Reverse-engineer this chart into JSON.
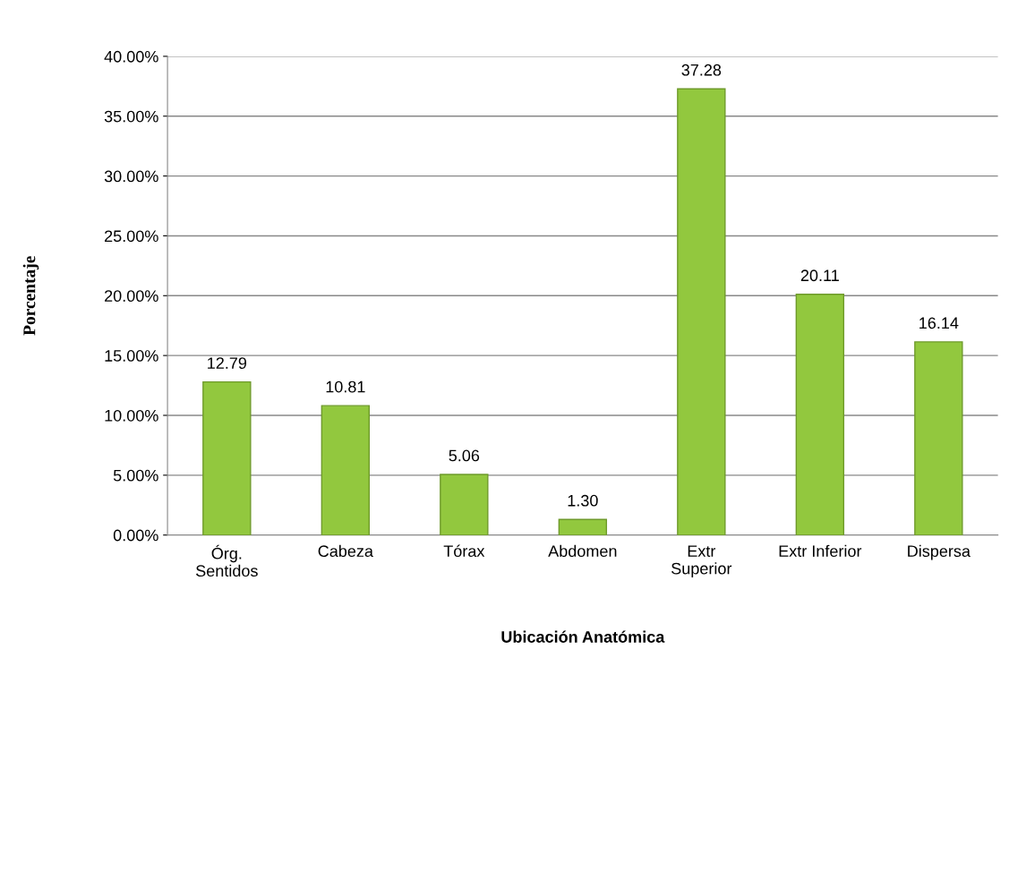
{
  "chart_data": {
    "type": "bar",
    "xlabel": "Ubicación Anatómica",
    "ylabel": "Porcentaje",
    "categories": [
      "Órg.\nSentidos",
      "Cabeza",
      "Tórax",
      "Abdomen",
      "Extr\nSuperior",
      "Extr Inferior",
      "Dispersa"
    ],
    "values": [
      12.79,
      10.81,
      5.06,
      1.3,
      37.28,
      20.11,
      16.14
    ],
    "value_labels": [
      "12.79",
      "10.81",
      "5.06",
      "1.30",
      "37.28",
      "20.11",
      "16.14"
    ],
    "color": "#92c83e",
    "ylim": [
      0,
      40
    ],
    "yticks": [
      {
        "value": 0,
        "label": "0.00%"
      },
      {
        "value": 5,
        "label": "5.00%"
      },
      {
        "value": 10,
        "label": "10.00%"
      },
      {
        "value": 15,
        "label": "15.00%"
      },
      {
        "value": 20,
        "label": "20.00%"
      },
      {
        "value": 25,
        "label": "25.00%"
      },
      {
        "value": 30,
        "label": "30.00%"
      },
      {
        "value": 35,
        "label": "35.00%"
      },
      {
        "value": 40,
        "label": "40.00%"
      }
    ],
    "grid": "y",
    "legend": false
  }
}
